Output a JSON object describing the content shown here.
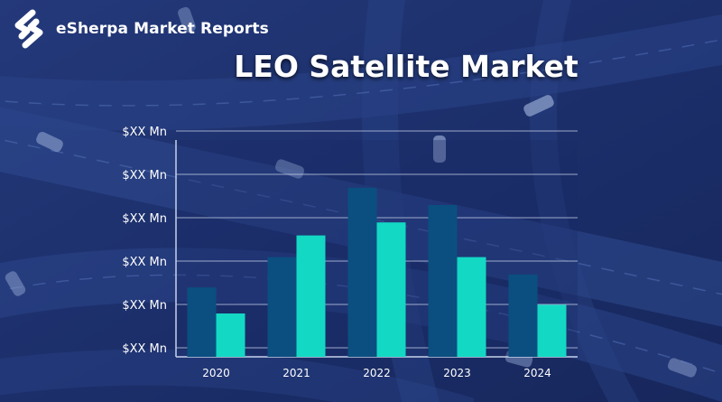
{
  "brand": {
    "name": "eSherpa Market Reports",
    "logo_icon": "esherpa-s-logo-icon"
  },
  "colors": {
    "background": "#1b2f6a",
    "series_dark": "#0a4f80",
    "series_teal": "#13d8c4",
    "gridline": "#c8d2ea",
    "text": "#ffffff"
  },
  "chart_data": {
    "type": "bar",
    "title": "LEO Satellite Market",
    "categories": [
      "2020",
      "2021",
      "2022",
      "2023",
      "2024"
    ],
    "series": [
      {
        "values": [
          1.6,
          2.3,
          3.9,
          3.5,
          1.9
        ]
      },
      {
        "values": [
          1.0,
          2.8,
          3.1,
          2.3,
          1.2
        ]
      }
    ],
    "yticks": [
      "$XX Mn",
      "$XX Mn",
      "$XX Mn",
      "$XX Mn",
      "$XX Mn",
      "$XX Mn"
    ],
    "ylim": [
      0,
      5
    ],
    "grid": true,
    "legend": "none"
  }
}
